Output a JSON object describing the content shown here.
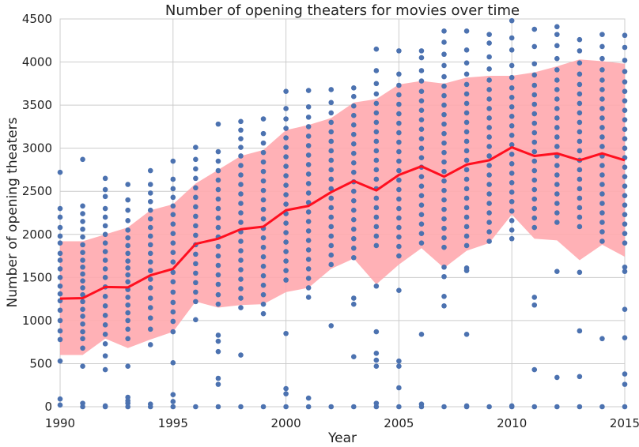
{
  "chart_data": {
    "type": "scatter",
    "title": "Number of opening theaters for movies over time",
    "xlabel": "Year",
    "ylabel": "Number of opening theaters",
    "xlim": [
      1990,
      2015
    ],
    "ylim": [
      0,
      4500
    ],
    "xticks": [
      1990,
      1995,
      2000,
      2005,
      2010,
      2015
    ],
    "yticks": [
      0,
      500,
      1000,
      1500,
      2000,
      2500,
      3000,
      3500,
      4000,
      4500
    ],
    "grid": true,
    "colors": {
      "points": "#4c72b0",
      "mean_line": "#ff0f1f",
      "band": "#ffa8ae",
      "grid": "#cccccc"
    },
    "mean_line": {
      "x": [
        1990,
        1991,
        1992,
        1993,
        1994,
        1995,
        1996,
        1997,
        1998,
        1999,
        2000,
        2001,
        2002,
        2003,
        2004,
        2005,
        2006,
        2007,
        2008,
        2009,
        2010,
        2011,
        2012,
        2013,
        2014,
        2015
      ],
      "y": [
        1255,
        1260,
        1390,
        1385,
        1525,
        1600,
        1890,
        1950,
        2060,
        2090,
        2280,
        2330,
        2490,
        2620,
        2510,
        2690,
        2790,
        2670,
        2810,
        2860,
        3010,
        2910,
        2940,
        2860,
        2940,
        2860
      ]
    },
    "band": {
      "x": [
        1990,
        1991,
        1992,
        1993,
        1994,
        1995,
        1996,
        1997,
        1998,
        1999,
        2000,
        2001,
        2002,
        2003,
        2004,
        2005,
        2006,
        2007,
        2008,
        2009,
        2010,
        2011,
        2012,
        2013,
        2014,
        2015
      ],
      "lower": [
        600,
        600,
        790,
        680,
        780,
        870,
        1220,
        1150,
        1180,
        1190,
        1330,
        1380,
        1600,
        1720,
        1420,
        1650,
        1840,
        1610,
        1810,
        1900,
        2230,
        1950,
        1930,
        1700,
        1880,
        1740
      ],
      "upper": [
        1920,
        1920,
        2000,
        2080,
        2280,
        2350,
        2590,
        2750,
        2910,
        2980,
        3210,
        3270,
        3350,
        3530,
        3570,
        3740,
        3780,
        3750,
        3820,
        3840,
        3840,
        3880,
        3950,
        4030,
        4010,
        3980
      ]
    },
    "points_per_year": [
      {
        "year": 1990,
        "values": [
          20,
          90,
          530,
          780,
          880,
          1000,
          1120,
          1230,
          1310,
          1400,
          1500,
          1600,
          1700,
          1780,
          1900,
          1980,
          2080,
          2200,
          2300,
          2720
        ]
      },
      {
        "year": 1991,
        "values": [
          0,
          40,
          470,
          680,
          790,
          870,
          960,
          1050,
          1130,
          1220,
          1300,
          1380,
          1460,
          1540,
          1620,
          1700,
          1790,
          1880,
          1970,
          2060,
          2150,
          2240,
          2330,
          2870
        ]
      },
      {
        "year": 1992,
        "values": [
          0,
          10,
          430,
          590,
          730,
          840,
          950,
          1060,
          1170,
          1280,
          1390,
          1500,
          1600,
          1700,
          1800,
          1900,
          2000,
          2100,
          2200,
          2300,
          2440,
          2520,
          2650
        ]
      },
      {
        "year": 1993,
        "values": [
          0,
          40,
          70,
          110,
          470,
          790,
          900,
          1000,
          1090,
          1180,
          1270,
          1360,
          1450,
          1530,
          1610,
          1690,
          1780,
          1870,
          1960,
          2050,
          2160,
          2280,
          2400,
          2580
        ]
      },
      {
        "year": 1994,
        "values": [
          0,
          30,
          720,
          900,
          1030,
          1150,
          1260,
          1380,
          1480,
          1580,
          1680,
          1780,
          1880,
          1980,
          2080,
          2180,
          2280,
          2380,
          2480,
          2580,
          2740
        ]
      },
      {
        "year": 1995,
        "values": [
          0,
          60,
          140,
          510,
          870,
          990,
          1100,
          1210,
          1330,
          1450,
          1560,
          1680,
          1790,
          1900,
          2010,
          2120,
          2230,
          2330,
          2430,
          2530,
          2640,
          2850
        ]
      },
      {
        "year": 1996,
        "values": [
          0,
          1010,
          1220,
          1330,
          1440,
          1550,
          1660,
          1770,
          1880,
          1990,
          2100,
          2210,
          2320,
          2430,
          2540,
          2650,
          2760,
          2870,
          3010
        ]
      },
      {
        "year": 1997,
        "values": [
          0,
          260,
          330,
          640,
          760,
          830,
          1190,
          1300,
          1420,
          1530,
          1640,
          1750,
          1860,
          1970,
          2080,
          2190,
          2300,
          2410,
          2520,
          2630,
          2740,
          2850,
          2960,
          3280
        ]
      },
      {
        "year": 1998,
        "values": [
          0,
          600,
          1150,
          1260,
          1370,
          1480,
          1590,
          1700,
          1810,
          1920,
          2030,
          2140,
          2250,
          2360,
          2470,
          2580,
          2690,
          2800,
          2910,
          3010,
          3110,
          3210,
          3310
        ]
      },
      {
        "year": 1999,
        "values": [
          0,
          1080,
          1190,
          1300,
          1410,
          1520,
          1630,
          1740,
          1850,
          1960,
          2070,
          2180,
          2290,
          2400,
          2510,
          2620,
          2730,
          2840,
          2950,
          3060,
          3170,
          3340
        ]
      },
      {
        "year": 2000,
        "values": [
          0,
          150,
          210,
          850,
          1470,
          1580,
          1690,
          1800,
          1910,
          2020,
          2130,
          2240,
          2350,
          2460,
          2570,
          2680,
          2790,
          2900,
          3010,
          3120,
          3230,
          3340,
          3460,
          3660
        ]
      },
      {
        "year": 2001,
        "values": [
          0,
          100,
          1270,
          1380,
          1490,
          1600,
          1710,
          1820,
          1930,
          2040,
          2150,
          2260,
          2370,
          2480,
          2590,
          2700,
          2810,
          2920,
          3030,
          3140,
          3250,
          3360,
          3480,
          3670
        ]
      },
      {
        "year": 2002,
        "values": [
          0,
          940,
          1650,
          1760,
          1870,
          1980,
          2090,
          2200,
          2310,
          2420,
          2530,
          2640,
          2750,
          2860,
          2970,
          3080,
          3190,
          3300,
          3410,
          3530,
          3680
        ]
      },
      {
        "year": 2003,
        "values": [
          0,
          580,
          1190,
          1260,
          1730,
          1840,
          1950,
          2060,
          2170,
          2280,
          2390,
          2500,
          2610,
          2720,
          2830,
          2940,
          3050,
          3160,
          3270,
          3380,
          3490,
          3600,
          3700
        ]
      },
      {
        "year": 2004,
        "values": [
          0,
          40,
          470,
          540,
          620,
          870,
          1400,
          1870,
          1980,
          2090,
          2200,
          2310,
          2420,
          2530,
          2640,
          2750,
          2860,
          2970,
          3080,
          3190,
          3300,
          3410,
          3520,
          3630,
          3750,
          3900,
          4150
        ]
      },
      {
        "year": 2005,
        "values": [
          0,
          220,
          470,
          530,
          1350,
          1750,
          1860,
          1970,
          2080,
          2190,
          2300,
          2410,
          2520,
          2630,
          2740,
          2850,
          2960,
          3070,
          3180,
          3290,
          3400,
          3510,
          3620,
          3730,
          3860,
          4130
        ]
      },
      {
        "year": 2006,
        "values": [
          0,
          30,
          840,
          1900,
          2010,
          2120,
          2230,
          2340,
          2450,
          2560,
          2670,
          2780,
          2890,
          3000,
          3110,
          3220,
          3330,
          3440,
          3550,
          3660,
          3780,
          3900,
          4050,
          4130
        ]
      },
      {
        "year": 2007,
        "values": [
          0,
          1170,
          1280,
          1510,
          1620,
          1850,
          1960,
          2070,
          2180,
          2290,
          2400,
          2510,
          2620,
          2730,
          2840,
          2950,
          3060,
          3170,
          3280,
          3390,
          3500,
          3610,
          3720,
          3830,
          3960,
          4090,
          4230,
          4360
        ]
      },
      {
        "year": 2008,
        "values": [
          0,
          10,
          840,
          1580,
          1610,
          1870,
          1980,
          2090,
          2200,
          2310,
          2420,
          2530,
          2640,
          2750,
          2860,
          2970,
          3080,
          3190,
          3300,
          3410,
          3520,
          3630,
          3740,
          3860,
          3990,
          4140,
          4360
        ]
      },
      {
        "year": 2009,
        "values": [
          0,
          1920,
          2030,
          2140,
          2250,
          2360,
          2470,
          2580,
          2690,
          2800,
          2910,
          3020,
          3130,
          3240,
          3350,
          3460,
          3570,
          3680,
          3790,
          3920,
          4060,
          4220,
          4320
        ]
      },
      {
        "year": 2010,
        "values": [
          0,
          10,
          1950,
          2050,
          2160,
          2270,
          2380,
          2490,
          2600,
          2710,
          2820,
          2930,
          3040,
          3150,
          3260,
          3370,
          3480,
          3590,
          3700,
          3820,
          3960,
          4140,
          4280,
          4480
        ]
      },
      {
        "year": 2011,
        "values": [
          0,
          430,
          1180,
          1270,
          2080,
          2190,
          2300,
          2410,
          2520,
          2630,
          2740,
          2850,
          2960,
          3070,
          3180,
          3290,
          3400,
          3510,
          3620,
          3730,
          3850,
          3980,
          4180,
          4380
        ]
      },
      {
        "year": 2012,
        "values": [
          0,
          340,
          1570,
          2140,
          2250,
          2360,
          2470,
          2580,
          2690,
          2800,
          2910,
          3020,
          3130,
          3240,
          3350,
          3460,
          3570,
          3680,
          3790,
          3910,
          4040,
          4190,
          4320,
          4410
        ]
      },
      {
        "year": 2013,
        "values": [
          0,
          350,
          880,
          1560,
          2090,
          2200,
          2310,
          2420,
          2530,
          2640,
          2750,
          2860,
          2970,
          3080,
          3190,
          3300,
          3410,
          3520,
          3630,
          3740,
          3860,
          3990,
          4130,
          4260
        ]
      },
      {
        "year": 2014,
        "values": [
          0,
          790,
          1920,
          2030,
          2140,
          2250,
          2360,
          2470,
          2580,
          2690,
          2800,
          2910,
          3020,
          3130,
          3240,
          3350,
          3460,
          3570,
          3680,
          3790,
          3910,
          4040,
          4180,
          4320
        ]
      },
      {
        "year": 2015,
        "values": [
          0,
          260,
          380,
          800,
          1130,
          1570,
          1620,
          1900,
          2010,
          2120,
          2230,
          2340,
          2450,
          2560,
          2670,
          2780,
          2890,
          3000,
          3110,
          3220,
          3330,
          3440,
          3550,
          3660,
          3770,
          3890,
          4020,
          4170,
          4310
        ]
      }
    ]
  }
}
